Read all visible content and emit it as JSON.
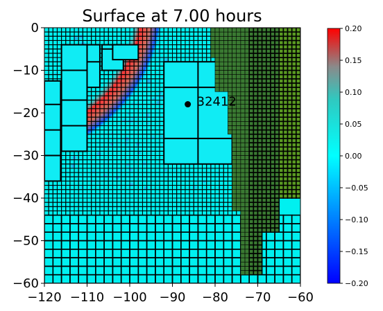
{
  "chart_data": {
    "type": "heatmap",
    "title": "Surface at 7.00 hours",
    "xlim": [
      -120,
      -60
    ],
    "ylim": [
      -60,
      0
    ],
    "xticks": [
      -120,
      -110,
      -100,
      -90,
      -80,
      -70,
      -60
    ],
    "yticks": [
      0,
      -10,
      -20,
      -30,
      -40,
      -50,
      -60
    ],
    "xtick_labels": [
      "−120",
      "−110",
      "−100",
      "−90",
      "−80",
      "−70",
      "−60"
    ],
    "ytick_labels": [
      "0",
      "−10",
      "−20",
      "−30",
      "−40",
      "−50",
      "−60"
    ],
    "colorbar": {
      "range": [
        -0.2,
        0.2
      ],
      "ticks": [
        0.2,
        0.15,
        0.1,
        0.05,
        0.0,
        -0.05,
        -0.1,
        -0.15,
        -0.2
      ],
      "tick_labels": [
        "0.20",
        "0.15",
        "0.10",
        "0.05",
        "0.00",
        "−0.05",
        "−0.10",
        "−0.15",
        "−0.20"
      ],
      "colormap": [
        "#0000ff",
        "#00ffff",
        "#e8e8e8",
        "#ff0000"
      ]
    },
    "gauge": {
      "label": "32412",
      "x": -86.4,
      "y": -17.97
    },
    "land_color": "#3a7a32",
    "land_color_light": "#5a9a22",
    "ocean_background_value": 0.0
  }
}
